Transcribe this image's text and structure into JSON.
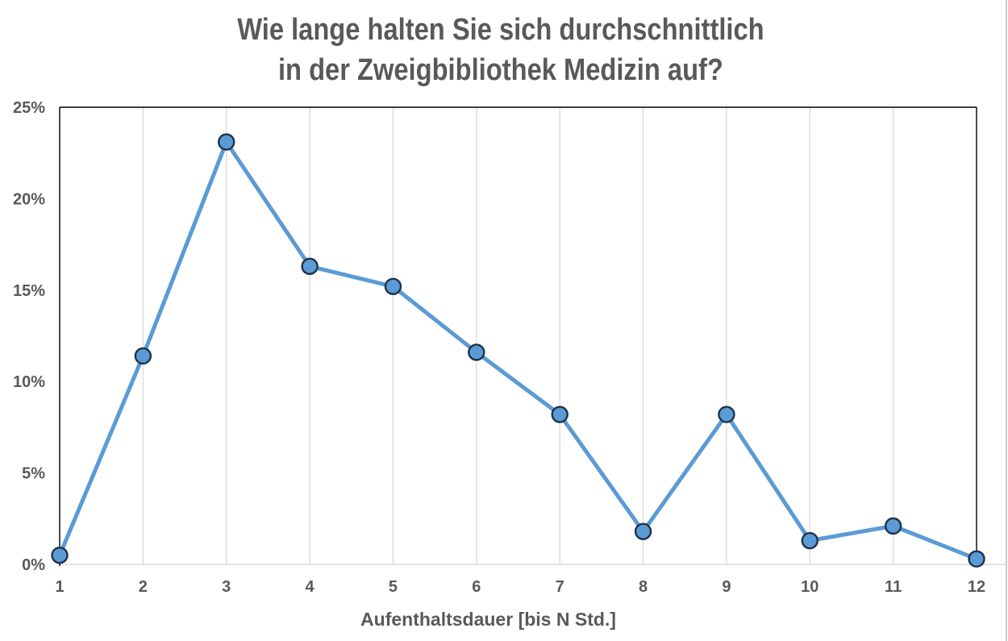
{
  "title": {
    "line1": "Wie lange halten Sie sich durchschnittlich",
    "line2": "in der Zweigbibliothek Medizin auf?"
  },
  "chart_data": {
    "type": "line",
    "title": "Wie lange halten Sie sich durchschnittlich in der Zweigbibliothek Medizin auf?",
    "categories": [
      "1",
      "2",
      "3",
      "4",
      "5",
      "6",
      "7",
      "8",
      "9",
      "10",
      "11",
      "12"
    ],
    "values": [
      0.5,
      11.4,
      23.1,
      16.3,
      15.2,
      11.6,
      8.2,
      1.8,
      8.2,
      1.3,
      2.1,
      0.3
    ],
    "series_name": "Aufenthaltsdauer",
    "xlabel": "Aufenthaltsdauer [bis N Std.]",
    "ylabel": "",
    "ylim": [
      0,
      25
    ],
    "yticks": [
      0,
      5,
      10,
      15,
      20,
      25
    ],
    "ytick_labels": [
      "0%",
      "5%",
      "10%",
      "15%",
      "20%",
      "25%"
    ],
    "grid": "vertical-only",
    "legend": "none",
    "colors": {
      "line": "#5B9BD5",
      "marker_fill": "#5B9BD5",
      "marker_border": "#1F3347",
      "text": "#595959",
      "gridline": "#D9D9D9",
      "axis_dark": "#000000",
      "axis_light": "#D9D9D9"
    }
  }
}
